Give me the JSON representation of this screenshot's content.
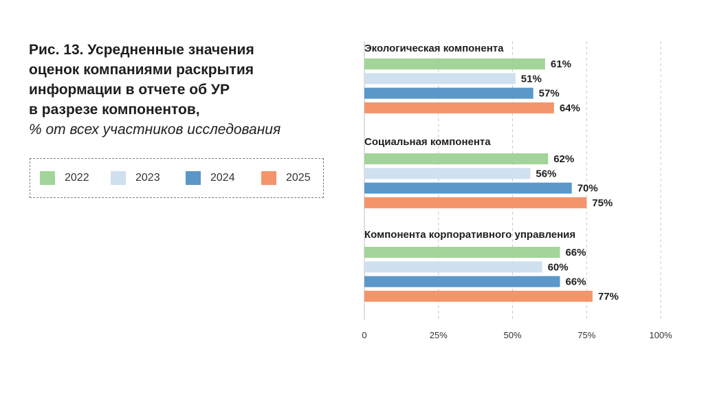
{
  "chart_data": {
    "type": "bar",
    "orientation": "horizontal",
    "title_lines": [
      "Рис. 13. Усредненные значения",
      "оценок компаниями раскрытия",
      "информации в отчете об УР",
      "в разрезе компонентов,"
    ],
    "subtitle": "% от всех участников исследования",
    "categories": [
      "Экологическая компонента",
      "Социальная компонента",
      "Компонента корпоративного управления"
    ],
    "series": [
      {
        "name": "2022",
        "color": "#a3d49a",
        "values": [
          61,
          62,
          66
        ]
      },
      {
        "name": "2023",
        "color": "#cfe0ef",
        "values": [
          51,
          56,
          60
        ]
      },
      {
        "name": "2024",
        "color": "#5b97c9",
        "values": [
          57,
          70,
          66
        ]
      },
      {
        "name": "2025",
        "color": "#f3946b",
        "values": [
          64,
          75,
          77
        ]
      }
    ],
    "value_suffix": "%",
    "xlim": [
      0,
      100
    ],
    "x_ticks": [
      0,
      25,
      50,
      75,
      100
    ],
    "x_tick_labels": [
      "0",
      "25%",
      "50%",
      "75%",
      "100%"
    ],
    "grid": "vertical dashed",
    "legend_position": "left, boxed, dashed border"
  }
}
